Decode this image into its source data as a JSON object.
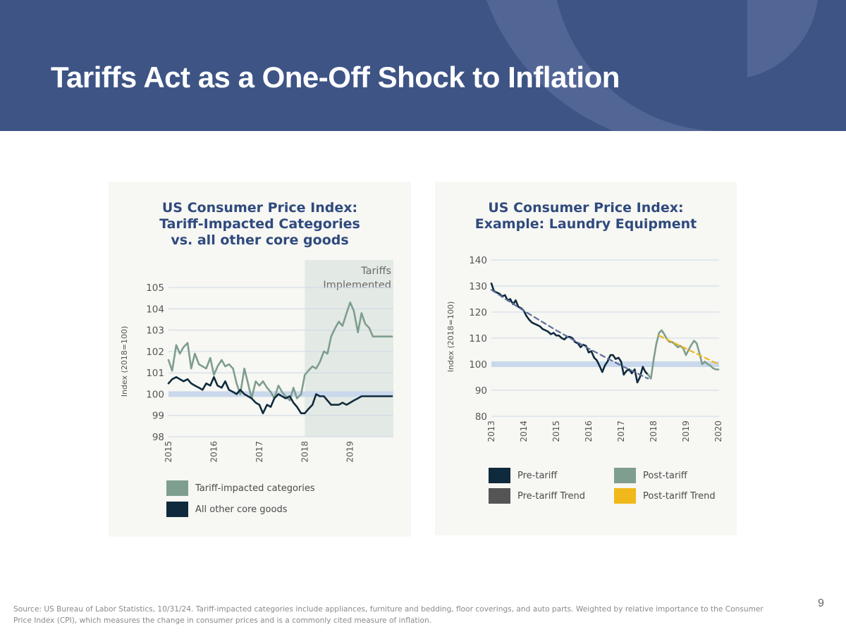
{
  "slide": {
    "title": "Tariffs Act as a One-Off Shock to Inflation",
    "page_number": "9",
    "footnote": "Source: US Bureau of Labor Statistics, 10/31/24. Tariff-impacted categories include appliances, furniture and bedding, floor coverings, and auto parts. Weighted by relative importance to the Consumer Price Index (CPI), which measures the change in consumer prices and is a commonly cited measure of inflation."
  },
  "colors": {
    "header_bg": "#3d5485",
    "title_text": "#2f4a7e",
    "tariff_series": "#7e9e8e",
    "core_series": "#0f2a3c",
    "pre_trend": "#5e6f9c",
    "post_trend": "#f0b81a",
    "band": "#c9d8ec",
    "shade": "#e3e9e4",
    "grid": "#cdd8e8"
  },
  "chart_data": [
    {
      "id": "left",
      "type": "line",
      "title_lines": [
        "US Consumer Price Index:",
        "Tariff-Impacted Categories",
        "vs. all other core goods"
      ],
      "ylabel": "Index (2018=100)",
      "xlabel": "",
      "ylim": [
        98,
        105.5
      ],
      "xlim": [
        2015,
        2019.92
      ],
      "y_ticks": [
        "98",
        "99",
        "100",
        "101",
        "102",
        "103",
        "104",
        "105"
      ],
      "x_ticks": [
        "2015",
        "2016",
        "2017",
        "2018",
        "2019"
      ],
      "grid": true,
      "reference_band": 100,
      "shaded_region": {
        "from": 2018,
        "to": 2019.92,
        "label_lines": [
          "Tariffs",
          "Implemented"
        ]
      },
      "legend": [
        {
          "label": "Tariff-impacted categories",
          "color": "#7e9e8e"
        },
        {
          "label": "All other core goods",
          "color": "#0f2a3c"
        }
      ],
      "series": [
        {
          "name": "Tariff-impacted categories",
          "color": "#7e9e8e",
          "x": [
            2015.0,
            2015.08,
            2015.17,
            2015.25,
            2015.33,
            2015.42,
            2015.5,
            2015.58,
            2015.67,
            2015.75,
            2015.83,
            2015.92,
            2016.0,
            2016.08,
            2016.17,
            2016.25,
            2016.33,
            2016.42,
            2016.5,
            2016.58,
            2016.67,
            2016.75,
            2016.83,
            2016.92,
            2017.0,
            2017.08,
            2017.17,
            2017.25,
            2017.33,
            2017.42,
            2017.5,
            2017.58,
            2017.67,
            2017.75,
            2017.83,
            2017.92,
            2018.0,
            2018.08,
            2018.17,
            2018.25,
            2018.33,
            2018.42,
            2018.5,
            2018.58,
            2018.67,
            2018.75,
            2018.83,
            2018.92,
            2019.0,
            2019.08,
            2019.17,
            2019.25,
            2019.33,
            2019.42,
            2019.5,
            2019.58,
            2019.67,
            2019.75,
            2019.83,
            2019.92
          ],
          "values": [
            101.6,
            101.1,
            102.3,
            101.9,
            102.2,
            102.4,
            101.2,
            101.9,
            101.4,
            101.3,
            101.2,
            101.7,
            100.9,
            101.3,
            101.6,
            101.3,
            101.4,
            101.2,
            100.5,
            100.0,
            101.2,
            100.5,
            99.8,
            100.6,
            100.4,
            100.6,
            100.3,
            100.1,
            99.8,
            100.4,
            100.1,
            99.9,
            99.7,
            100.3,
            99.8,
            100.0,
            100.9,
            101.1,
            101.3,
            101.2,
            101.5,
            102.0,
            101.9,
            102.7,
            103.1,
            103.4,
            103.2,
            103.8,
            104.3,
            103.9,
            102.9,
            103.8,
            103.3,
            103.1,
            102.7,
            102.7,
            102.7,
            102.7,
            102.7,
            102.7
          ]
        },
        {
          "name": "All other core goods",
          "color": "#0f2a3c",
          "x": [
            2015.0,
            2015.08,
            2015.17,
            2015.25,
            2015.33,
            2015.42,
            2015.5,
            2015.58,
            2015.67,
            2015.75,
            2015.83,
            2015.92,
            2016.0,
            2016.08,
            2016.17,
            2016.25,
            2016.33,
            2016.42,
            2016.5,
            2016.58,
            2016.67,
            2016.75,
            2016.83,
            2016.92,
            2017.0,
            2017.08,
            2017.17,
            2017.25,
            2017.33,
            2017.42,
            2017.5,
            2017.58,
            2017.67,
            2017.75,
            2017.83,
            2017.92,
            2018.0,
            2018.08,
            2018.17,
            2018.25,
            2018.33,
            2018.42,
            2018.5,
            2018.58,
            2018.67,
            2018.75,
            2018.83,
            2018.92,
            2019.0,
            2019.08,
            2019.17,
            2019.25,
            2019.33,
            2019.42,
            2019.5,
            2019.58,
            2019.67,
            2019.75,
            2019.83,
            2019.92
          ],
          "values": [
            100.5,
            100.7,
            100.8,
            100.7,
            100.6,
            100.7,
            100.5,
            100.4,
            100.3,
            100.2,
            100.5,
            100.4,
            100.8,
            100.4,
            100.3,
            100.6,
            100.2,
            100.1,
            100.0,
            100.2,
            100.0,
            99.9,
            99.8,
            99.6,
            99.5,
            99.1,
            99.5,
            99.4,
            99.8,
            100.0,
            99.9,
            99.8,
            99.9,
            99.6,
            99.4,
            99.1,
            99.1,
            99.3,
            99.5,
            100.0,
            99.9,
            99.9,
            99.7,
            99.5,
            99.5,
            99.5,
            99.6,
            99.5,
            99.6,
            99.7,
            99.8,
            99.9,
            99.9,
            99.9,
            99.9,
            99.9,
            99.9,
            99.9,
            99.9,
            99.9
          ]
        }
      ]
    },
    {
      "id": "right",
      "type": "line",
      "title_lines": [
        "US Consumer Price Index:",
        "Example: Laundry Equipment"
      ],
      "ylabel": "Index (2018=100)",
      "xlabel": "",
      "ylim": [
        80,
        140
      ],
      "xlim": [
        2013,
        2020
      ],
      "y_ticks": [
        "80",
        "90",
        "100",
        "110",
        "120",
        "130",
        "140"
      ],
      "x_ticks": [
        "2013",
        "2014",
        "2015",
        "2016",
        "2017",
        "2018",
        "2019",
        "2020"
      ],
      "grid": true,
      "reference_band": 100,
      "legend": [
        {
          "label": "Pre-tariff",
          "color": "#0f2a3c"
        },
        {
          "label": "Post-tariff",
          "color": "#7e9e8e"
        },
        {
          "label": "Pre-tariff Trend",
          "color": "#555555"
        },
        {
          "label": "Post-tariff Trend",
          "color": "#f0b81a"
        }
      ],
      "series": [
        {
          "name": "Pre-tariff",
          "color": "#0f2a3c",
          "x": [
            2013.0,
            2013.08,
            2013.17,
            2013.25,
            2013.33,
            2013.42,
            2013.5,
            2013.58,
            2013.67,
            2013.75,
            2013.83,
            2013.92,
            2014.0,
            2014.08,
            2014.17,
            2014.25,
            2014.33,
            2014.42,
            2014.5,
            2014.58,
            2014.67,
            2014.75,
            2014.83,
            2014.92,
            2015.0,
            2015.08,
            2015.17,
            2015.25,
            2015.33,
            2015.42,
            2015.5,
            2015.58,
            2015.67,
            2015.75,
            2015.83,
            2015.92,
            2016.0,
            2016.08,
            2016.17,
            2016.25,
            2016.33,
            2016.42,
            2016.5,
            2016.58,
            2016.67,
            2016.75,
            2016.83,
            2016.92,
            2017.0,
            2017.08,
            2017.17,
            2017.25,
            2017.33,
            2017.42,
            2017.5,
            2017.58,
            2017.67,
            2017.75,
            2017.83
          ],
          "values": [
            131.0,
            128.0,
            127.5,
            127.0,
            126.0,
            126.5,
            124.5,
            125.0,
            123.0,
            124.5,
            122.0,
            121.5,
            120.5,
            118.5,
            117.0,
            116.0,
            115.5,
            115.0,
            114.5,
            113.5,
            113.0,
            112.5,
            111.5,
            112.0,
            111.0,
            111.0,
            110.0,
            109.5,
            110.5,
            110.5,
            110.0,
            108.5,
            108.0,
            106.5,
            107.5,
            107.0,
            104.5,
            105.0,
            102.5,
            101.5,
            99.5,
            97.0,
            99.5,
            101.0,
            103.5,
            103.5,
            102.0,
            102.5,
            101.0,
            96.0,
            97.5,
            98.0,
            96.5,
            98.0,
            93.0,
            95.0,
            99.0,
            97.0,
            96.0
          ]
        },
        {
          "name": "Post-tariff",
          "color": "#7e9e8e",
          "x": [
            2017.83,
            2017.92,
            2018.0,
            2018.08,
            2018.17,
            2018.25,
            2018.33,
            2018.42,
            2018.5,
            2018.58,
            2018.67,
            2018.75,
            2018.83,
            2018.92,
            2019.0,
            2019.08,
            2019.17,
            2019.25,
            2019.33,
            2019.42,
            2019.5,
            2019.58,
            2019.67,
            2019.75,
            2019.83,
            2019.92,
            2020.0
          ],
          "values": [
            96.0,
            94.5,
            101.5,
            107.5,
            112.0,
            113.0,
            111.5,
            109.5,
            108.5,
            108.5,
            107.5,
            106.5,
            107.0,
            106.0,
            103.5,
            105.5,
            107.5,
            109.0,
            108.0,
            104.0,
            100.0,
            101.0,
            100.0,
            99.5,
            98.5,
            98.0,
            98.0
          ]
        },
        {
          "name": "Pre-tariff Trend",
          "color": "#5e6f9c",
          "dashed": true,
          "x": [
            2013.0,
            2014.0,
            2015.0,
            2016.0,
            2017.0,
            2017.83
          ],
          "values": [
            128.5,
            120.5,
            113.0,
            106.0,
            99.5,
            94.5
          ]
        },
        {
          "name": "Post-tariff Trend",
          "color": "#f0b81a",
          "dashed": true,
          "x": [
            2018.17,
            2018.5,
            2019.0,
            2019.5,
            2020.0
          ],
          "values": [
            111.0,
            109.0,
            106.0,
            103.0,
            100.0
          ]
        }
      ]
    }
  ]
}
